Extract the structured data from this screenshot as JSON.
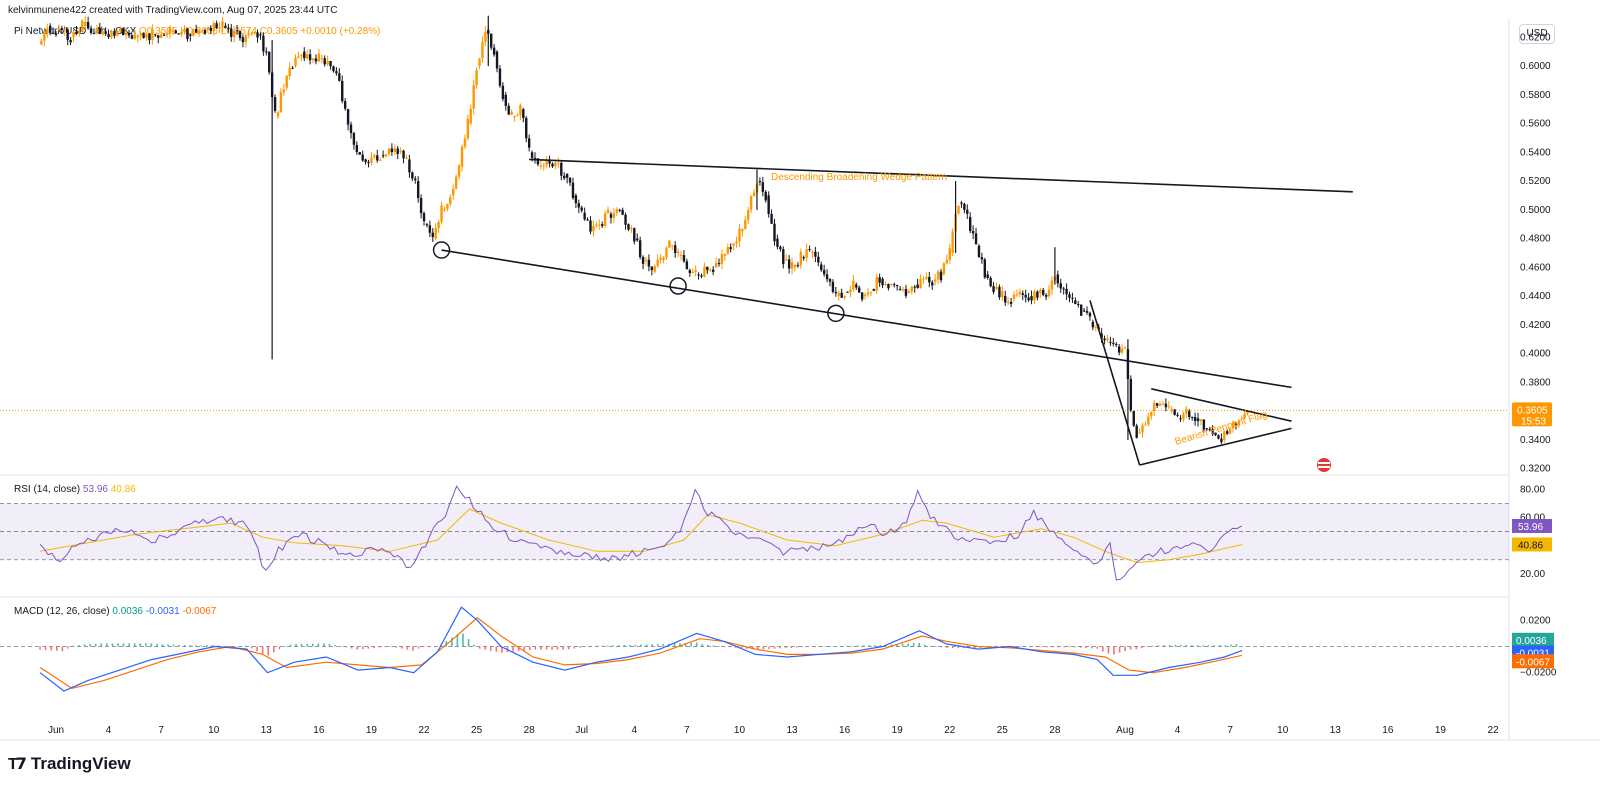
{
  "header": {
    "creator": "kelvinmunene422 created with TradingView.com, Aug 07, 2025 23:44 UTC"
  },
  "legend": {
    "symbol": "Pi Network/USD · 4h · OKX",
    "ohlc": "O0.3595 H0.3606 L0.3574 C0.3605",
    "change": "+0.0010 (+0.28%)"
  },
  "currency_button": "USD",
  "colors": {
    "up": "#ff9800",
    "down": "#131722",
    "rsi": "#7e57c2",
    "rsi_ma": "#f5b800",
    "macd": "#2962ff",
    "signal": "#ff6d00",
    "hist_pos": "#26a69a",
    "hist_neg": "#ef5350",
    "annotation": "#ff9800"
  },
  "annotations": {
    "wedge": "Descending Broadening  Wedge Pattern",
    "pennant": "Bearish Pennant Flag"
  },
  "price_axis": {
    "ticks": [
      "0.6200",
      "0.6000",
      "0.5800",
      "0.5600",
      "0.5400",
      "0.5200",
      "0.5000",
      "0.4800",
      "0.4600",
      "0.4400",
      "0.4200",
      "0.4000",
      "0.3800",
      "0.3400",
      "0.3200"
    ],
    "last_price": "0.3605",
    "countdown": "15:53"
  },
  "rsi": {
    "title": "RSI (14, close)",
    "value": "53.96",
    "ma_value": "40.86",
    "ticks": [
      "80.00",
      "60.00",
      "20.00"
    ]
  },
  "macd": {
    "title": "MACD (12, 26, close)",
    "hist_value": "0.0036",
    "macd_value": "-0.0031",
    "signal_value": "-0.0067",
    "ticks": [
      "0.0200",
      "−0.0200"
    ]
  },
  "time_axis": [
    "Jun",
    "4",
    "7",
    "10",
    "13",
    "16",
    "19",
    "22",
    "25",
    "28",
    "Jul",
    "4",
    "7",
    "10",
    "13",
    "16",
    "19",
    "22",
    "25",
    "28",
    "Aug",
    "4",
    "7",
    "10",
    "13",
    "16",
    "19",
    "22"
  ],
  "brand": "TradingView",
  "chart_data": {
    "type": "candlestick",
    "ylim": [
      0.31,
      0.63
    ],
    "x_range_days": [
      -1.4,
      52.4
    ],
    "x_reference": "day 0 = Jun 1, day 31 = Aug 1",
    "price_path": [
      [
        "May 31 00:00",
        0.615
      ],
      [
        "May 31 12:00",
        0.628
      ],
      [
        "Jun 1 00:00",
        0.625
      ],
      [
        "Jun 1 20:00",
        0.62
      ],
      [
        "Jun 2 12:00",
        0.628
      ],
      [
        "Jun 3 12:00",
        0.622
      ],
      [
        "Jun 4 12:00",
        0.624
      ],
      [
        "Jun 5 12:00",
        0.62
      ],
      [
        "Jun 6 12:00",
        0.622
      ],
      [
        "Jun 7 12:00",
        0.624
      ],
      [
        "Jun 8 12:00",
        0.622
      ],
      [
        "Jun 9 12:00",
        0.625
      ],
      [
        "Jun 10 12:00",
        0.628
      ],
      [
        "Jun 11 12:00",
        0.62
      ],
      [
        "Jun 12 12:00",
        0.622
      ],
      [
        "Jun 13 00:00",
        0.61
      ],
      [
        "Jun 13 12:00",
        0.565
      ],
      [
        "Jun 14 00:00",
        0.585
      ],
      [
        "Jun 14 12:00",
        0.6
      ],
      [
        "Jun 15 00:00",
        0.61
      ],
      [
        "Jun 16 00:00",
        0.605
      ],
      [
        "Jun 17 00:00",
        0.595
      ],
      [
        "Jun 17 12:00",
        0.57
      ],
      [
        "Jun 18 00:00",
        0.545
      ],
      [
        "Jun 18 12:00",
        0.535
      ],
      [
        "Jun 19 12:00",
        0.538
      ],
      [
        "Jun 20 12:00",
        0.54
      ],
      [
        "Jun 21 00:00",
        0.535
      ],
      [
        "Jun 21 12:00",
        0.52
      ],
      [
        "Jun 22 00:00",
        0.49
      ],
      [
        "Jun 22 12:00",
        0.48
      ],
      [
        "Jun 23 00:00",
        0.5
      ],
      [
        "Jun 23 12:00",
        0.51
      ],
      [
        "Jun 24 00:00",
        0.53
      ],
      [
        "Jun 24 12:00",
        0.56
      ],
      [
        "Jun 25 00:00",
        0.6
      ],
      [
        "Jun 25 12:00",
        0.625
      ],
      [
        "Jun 26 00:00",
        0.61
      ],
      [
        "Jun 26 12:00",
        0.58
      ],
      [
        "Jun 27 00:00",
        0.565
      ],
      [
        "Jun 27 12:00",
        0.57
      ],
      [
        "Jun 28 00:00",
        0.54
      ],
      [
        "Jun 28 12:00",
        0.53
      ],
      [
        "Jun 29 12:00",
        0.532
      ],
      [
        "Jun 30 00:00",
        0.525
      ],
      [
        "Jun 30 12:00",
        0.51
      ],
      [
        "Jul 1 00:00",
        0.498
      ],
      [
        "Jul 1 12:00",
        0.485
      ],
      [
        "Jul 2 00:00",
        0.49
      ],
      [
        "Jul 2 12:00",
        0.497
      ],
      [
        "Jul 3 00:00",
        0.5
      ],
      [
        "Jul 3 12:00",
        0.49
      ],
      [
        "Jul 4 00:00",
        0.48
      ],
      [
        "Jul 4 12:00",
        0.465
      ],
      [
        "Jul 5 00:00",
        0.457
      ],
      [
        "Jul 5 12:00",
        0.465
      ],
      [
        "Jul 6 00:00",
        0.475
      ],
      [
        "Jul 6 12:00",
        0.468
      ],
      [
        "Jul 7 00:00",
        0.458
      ],
      [
        "Jul 7 12:00",
        0.455
      ],
      [
        "Jul 8 12:00",
        0.46
      ],
      [
        "Jul 9 00:00",
        0.468
      ],
      [
        "Jul 9 12:00",
        0.475
      ],
      [
        "Jul 10 00:00",
        0.485
      ],
      [
        "Jul 10 12:00",
        0.5
      ],
      [
        "Jul 11 00:00",
        0.52
      ],
      [
        "Jul 11 12:00",
        0.51
      ],
      [
        "Jul 12 00:00",
        0.48
      ],
      [
        "Jul 12 12:00",
        0.465
      ],
      [
        "Jul 13 00:00",
        0.46
      ],
      [
        "Jul 13 12:00",
        0.467
      ],
      [
        "Jul 14 00:00",
        0.47
      ],
      [
        "Jul 14 12:00",
        0.462
      ],
      [
        "Jul 15 00:00",
        0.452
      ],
      [
        "Jul 15 12:00",
        0.44
      ],
      [
        "Jul 16 00:00",
        0.443
      ],
      [
        "Jul 16 12:00",
        0.448
      ],
      [
        "Jul 17 00:00",
        0.44
      ],
      [
        "Jul 17 12:00",
        0.445
      ],
      [
        "Jul 18 00:00",
        0.452
      ],
      [
        "Jul 18 12:00",
        0.448
      ],
      [
        "Jul 19 00:00",
        0.445
      ],
      [
        "Jul 19 12:00",
        0.442
      ],
      [
        "Jul 20 00:00",
        0.448
      ],
      [
        "Jul 20 12:00",
        0.452
      ],
      [
        "Jul 21 00:00",
        0.45
      ],
      [
        "Jul 21 12:00",
        0.455
      ],
      [
        "Jul 22 00:00",
        0.47
      ],
      [
        "Jul 22 12:00",
        0.505
      ],
      [
        "Jul 23 00:00",
        0.495
      ],
      [
        "Jul 23 12:00",
        0.475
      ],
      [
        "Jul 24 00:00",
        0.455
      ],
      [
        "Jul 24 12:00",
        0.445
      ],
      [
        "Jul 25 00:00",
        0.44
      ],
      [
        "Jul 25 12:00",
        0.438
      ],
      [
        "Jul 26 00:00",
        0.442
      ],
      [
        "Jul 26 12:00",
        0.44
      ],
      [
        "Jul 27 00:00",
        0.442
      ],
      [
        "Jul 27 12:00",
        0.44
      ],
      [
        "Jul 28 00:00",
        0.455
      ],
      [
        "Jul 28 12:00",
        0.445
      ],
      [
        "Jul 29 00:00",
        0.437
      ],
      [
        "Jul 29 12:00",
        0.43
      ],
      [
        "Jul 30 00:00",
        0.422
      ],
      [
        "Jul 30 12:00",
        0.414
      ],
      [
        "Jul 31 00:00",
        0.408
      ],
      [
        "Jul 31 12:00",
        0.405
      ],
      [
        "Aug 1 00:00",
        0.403
      ],
      [
        "Aug 1 08:00",
        0.36
      ],
      [
        "Aug 1 16:00",
        0.345
      ],
      [
        "Aug 2 00:00",
        0.35
      ],
      [
        "Aug 2 12:00",
        0.36
      ],
      [
        "Aug 3 00:00",
        0.365
      ],
      [
        "Aug 3 12:00",
        0.36
      ],
      [
        "Aug 4 00:00",
        0.355
      ],
      [
        "Aug 4 12:00",
        0.36
      ],
      [
        "Aug 5 00:00",
        0.355
      ],
      [
        "Aug 5 12:00",
        0.348
      ],
      [
        "Aug 6 00:00",
        0.345
      ],
      [
        "Aug 6 12:00",
        0.34
      ],
      [
        "Aug 7 00:00",
        0.348
      ],
      [
        "Aug 7 12:00",
        0.355
      ],
      [
        "Aug 7 23:44",
        0.3605
      ]
    ],
    "wicks": [
      {
        "time": "Jun 13 08:00",
        "high": 0.618,
        "low": 0.396
      },
      {
        "time": "Jun 25 16:00",
        "high": 0.635,
        "low": 0.6
      },
      {
        "time": "Jul 11 00:00",
        "high": 0.528,
        "low": 0.5
      },
      {
        "time": "Jul 22 08:00",
        "high": 0.52,
        "low": 0.47
      },
      {
        "time": "Jul 28 00:00",
        "high": 0.474,
        "low": 0.448
      },
      {
        "time": "Aug 1 04:00",
        "high": 0.41,
        "low": 0.34
      }
    ],
    "trendlines": [
      {
        "name": "wedge-upper",
        "from": [
          "Jun 28 00:00",
          0.535
        ],
        "to": [
          "Aug 14 00:00",
          0.5125
        ]
      },
      {
        "name": "wedge-lower",
        "from": [
          "Jun 23 00:00",
          0.472
        ],
        "to": [
          "Aug 10 12:00",
          0.3765
        ]
      },
      {
        "name": "flagpole",
        "from": [
          "Jul 30 00:00",
          0.437
        ],
        "to": [
          "Aug 1 20:00",
          0.3225
        ]
      },
      {
        "name": "pennant-upper",
        "from": [
          "Aug 2 12:00",
          0.3755
        ],
        "to": [
          "Aug 10 12:00",
          0.353
        ]
      },
      {
        "name": "pennant-lower",
        "from": [
          "Aug 1 20:00",
          0.3225
        ],
        "to": [
          "Aug 10 12:00",
          0.348
        ]
      }
    ],
    "touch_points": [
      {
        "time": "Jun 23 00:00",
        "price": 0.472
      },
      {
        "time": "Jul 6 12:00",
        "price": 0.447
      },
      {
        "time": "Jul 15 12:00",
        "price": 0.428
      }
    ],
    "rsi": {
      "ylim": [
        5,
        88
      ],
      "bands": [
        70,
        50,
        30
      ],
      "values": [
        [
          -1,
          38
        ],
        [
          0,
          30
        ],
        [
          1.5,
          40
        ],
        [
          3,
          48
        ],
        [
          4.5,
          52
        ],
        [
          6,
          44
        ],
        [
          7.5,
          50
        ],
        [
          9,
          56
        ],
        [
          10.5,
          58
        ],
        [
          12,
          54
        ],
        [
          12.7,
          36
        ],
        [
          13.2,
          20
        ],
        [
          14,
          38
        ],
        [
          15.5,
          48
        ],
        [
          17,
          40
        ],
        [
          18.5,
          32
        ],
        [
          20,
          38
        ],
        [
          21.5,
          34
        ],
        [
          22.3,
          22
        ],
        [
          23,
          38
        ],
        [
          24.5,
          62
        ],
        [
          25.2,
          82
        ],
        [
          26,
          72
        ],
        [
          27.5,
          52
        ],
        [
          29,
          44
        ],
        [
          30.5,
          38
        ],
        [
          32,
          34
        ],
        [
          34,
          32
        ],
        [
          35.5,
          30
        ],
        [
          37,
          38
        ],
        [
          38.5,
          42
        ],
        [
          39.5,
          56
        ],
        [
          40.2,
          78
        ],
        [
          41,
          64
        ],
        [
          42.5,
          50
        ],
        [
          44,
          46
        ],
        [
          45.5,
          36
        ],
        [
          47,
          36
        ],
        [
          49,
          40
        ],
        [
          50.2,
          48
        ],
        [
          51,
          56
        ],
        [
          52,
          48
        ],
        [
          53.5,
          54
        ],
        [
          54.2,
          80
        ],
        [
          55,
          60
        ],
        [
          56.5,
          46
        ],
        [
          58,
          42
        ],
        [
          59.5,
          44
        ],
        [
          60.5,
          48
        ],
        [
          61.5,
          64
        ],
        [
          62.5,
          52
        ],
        [
          63.5,
          42
        ],
        [
          64.5,
          34
        ],
        [
          65.5,
          26
        ],
        [
          66.3,
          42
        ],
        [
          66.7,
          14
        ],
        [
          68,
          28
        ],
        [
          69.5,
          36
        ],
        [
          71,
          40
        ],
        [
          72.5,
          38
        ],
        [
          73.2,
          42
        ],
        [
          74,
          52
        ],
        [
          74.6,
          54
        ]
      ],
      "ma": [
        [
          -1,
          36
        ],
        [
          2,
          42
        ],
        [
          5,
          48
        ],
        [
          8,
          52
        ],
        [
          11,
          56
        ],
        [
          13,
          46
        ],
        [
          15,
          42
        ],
        [
          18,
          40
        ],
        [
          21,
          36
        ],
        [
          24,
          44
        ],
        [
          26,
          66
        ],
        [
          28,
          56
        ],
        [
          31,
          44
        ],
        [
          34,
          36
        ],
        [
          37,
          36
        ],
        [
          39.5,
          44
        ],
        [
          41,
          62
        ],
        [
          43,
          56
        ],
        [
          46,
          44
        ],
        [
          49,
          40
        ],
        [
          52,
          48
        ],
        [
          54.5,
          58
        ],
        [
          56,
          56
        ],
        [
          59,
          46
        ],
        [
          62,
          52
        ],
        [
          64,
          46
        ],
        [
          66,
          36
        ],
        [
          68,
          28
        ],
        [
          70,
          30
        ],
        [
          72,
          34
        ],
        [
          74.6,
          40.86
        ]
      ]
    },
    "macd": {
      "ylim": [
        -0.05,
        0.034
      ],
      "macd": [
        [
          -1,
          -0.02
        ],
        [
          0.5,
          -0.034
        ],
        [
          2,
          -0.026
        ],
        [
          4,
          -0.018
        ],
        [
          6,
          -0.01
        ],
        [
          8,
          -0.005
        ],
        [
          10,
          0.0
        ],
        [
          12,
          -0.002
        ],
        [
          13.3,
          -0.02
        ],
        [
          15,
          -0.012
        ],
        [
          17,
          -0.008
        ],
        [
          19,
          -0.018
        ],
        [
          21,
          -0.016
        ],
        [
          22.5,
          -0.02
        ],
        [
          24,
          -0.004
        ],
        [
          25.5,
          0.03
        ],
        [
          26.5,
          0.02
        ],
        [
          28,
          0.0
        ],
        [
          30,
          -0.012
        ],
        [
          32,
          -0.018
        ],
        [
          34,
          -0.012
        ],
        [
          36,
          -0.008
        ],
        [
          38,
          -0.002
        ],
        [
          40.3,
          0.01
        ],
        [
          42,
          0.004
        ],
        [
          44,
          -0.006
        ],
        [
          46,
          -0.008
        ],
        [
          48,
          -0.006
        ],
        [
          50,
          -0.004
        ],
        [
          52,
          0.0
        ],
        [
          54.3,
          0.012
        ],
        [
          56,
          0.002
        ],
        [
          58,
          -0.002
        ],
        [
          60,
          0.0
        ],
        [
          62,
          -0.004
        ],
        [
          64,
          -0.006
        ],
        [
          65.5,
          -0.01
        ],
        [
          66.5,
          -0.022
        ],
        [
          68,
          -0.022
        ],
        [
          70,
          -0.016
        ],
        [
          72,
          -0.012
        ],
        [
          73.5,
          -0.008
        ],
        [
          74.6,
          -0.0031
        ]
      ],
      "signal": [
        [
          -1,
          -0.016
        ],
        [
          1,
          -0.032
        ],
        [
          3,
          -0.026
        ],
        [
          5,
          -0.018
        ],
        [
          7,
          -0.01
        ],
        [
          9,
          -0.004
        ],
        [
          11,
          0.0
        ],
        [
          13,
          -0.006
        ],
        [
          14.5,
          -0.016
        ],
        [
          17,
          -0.012
        ],
        [
          19,
          -0.014
        ],
        [
          21,
          -0.016
        ],
        [
          23,
          -0.014
        ],
        [
          25,
          0.006
        ],
        [
          26.5,
          0.022
        ],
        [
          28,
          0.008
        ],
        [
          30,
          -0.008
        ],
        [
          32,
          -0.014
        ],
        [
          34,
          -0.013
        ],
        [
          36,
          -0.01
        ],
        [
          38,
          -0.005
        ],
        [
          40.5,
          0.006
        ],
        [
          42,
          0.004
        ],
        [
          44,
          -0.002
        ],
        [
          46,
          -0.006
        ],
        [
          48,
          -0.006
        ],
        [
          50,
          -0.005
        ],
        [
          52,
          -0.002
        ],
        [
          54.5,
          0.008
        ],
        [
          56,
          0.004
        ],
        [
          58,
          0.0
        ],
        [
          60,
          -0.001
        ],
        [
          62,
          -0.003
        ],
        [
          64,
          -0.005
        ],
        [
          66,
          -0.008
        ],
        [
          67.5,
          -0.018
        ],
        [
          69,
          -0.02
        ],
        [
          71,
          -0.016
        ],
        [
          73,
          -0.011
        ],
        [
          74.6,
          -0.0067
        ]
      ],
      "histogram_note": "difference of macd and signal"
    }
  }
}
